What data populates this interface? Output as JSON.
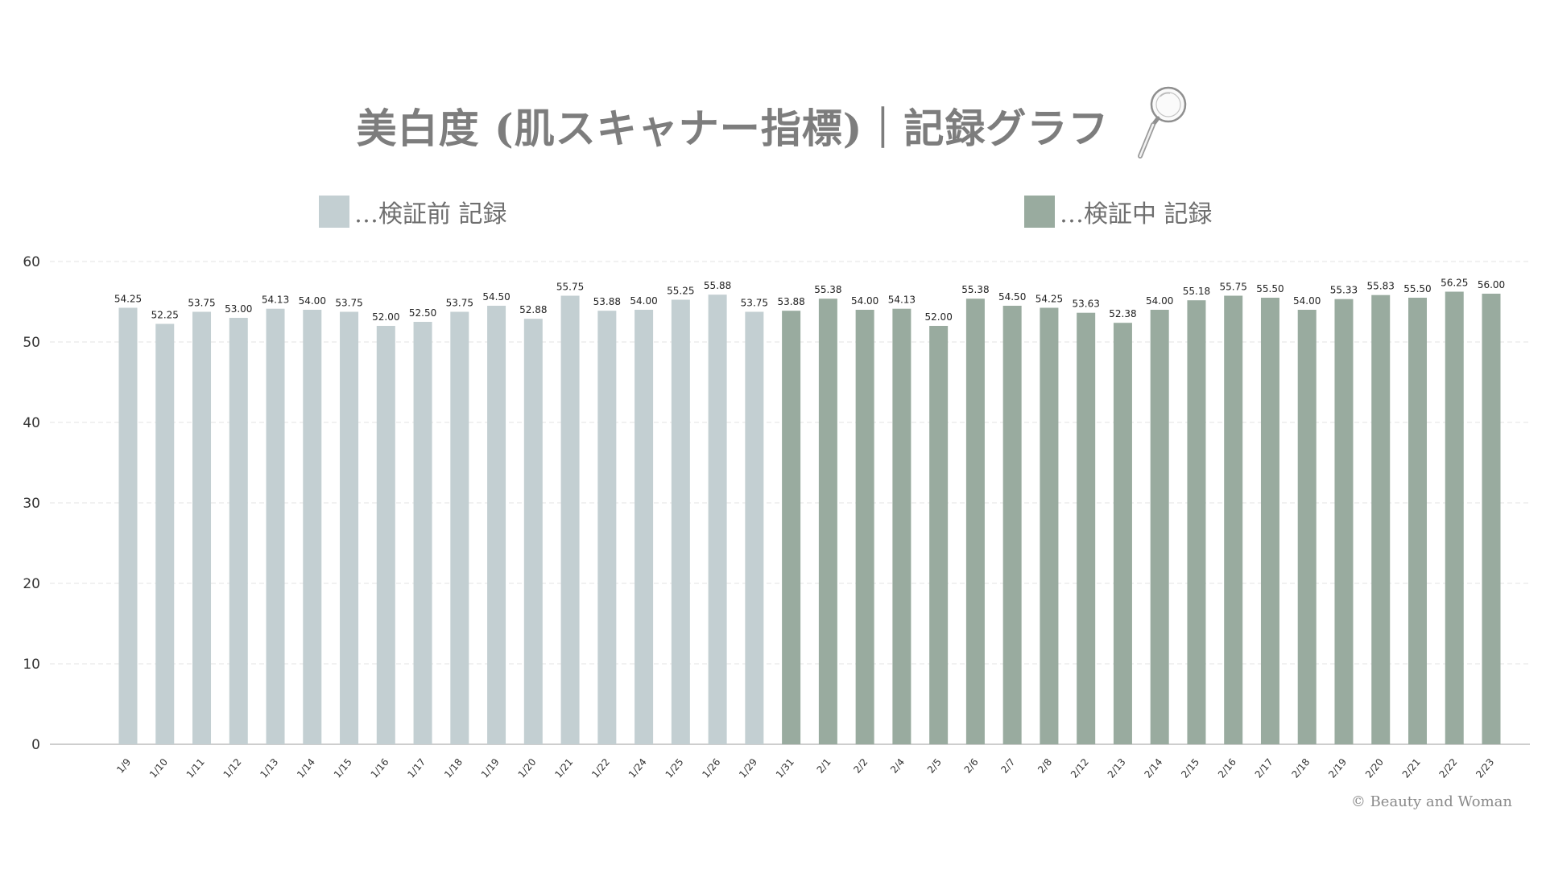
{
  "title": "美白度 (肌スキャナー指標)｜記録グラフ",
  "icons": {
    "title_icon": "magnifying-glass-icon"
  },
  "legend": [
    {
      "label": "…検証前 記録",
      "color": "#c3cfd2"
    },
    {
      "label": "…検証中 記録",
      "color": "#99ab9f"
    }
  ],
  "copyright": "© Beauty and Woman",
  "colors": {
    "before": "#c3cfd2",
    "during": "#99ab9f",
    "axis": "#333333",
    "grid": "#e3e3e3"
  },
  "chart_data": {
    "type": "bar",
    "title": "美白度 (肌スキャナー指標)｜記録グラフ",
    "xlabel": "",
    "ylabel": "",
    "ylim": [
      0,
      60
    ],
    "yticks": [
      0,
      10,
      20,
      30,
      40,
      50,
      60
    ],
    "grid": true,
    "legend_position": "top",
    "categories": [
      "1/9",
      "1/10",
      "1/11",
      "1/12",
      "1/13",
      "1/14",
      "1/15",
      "1/16",
      "1/17",
      "1/18",
      "1/19",
      "1/20",
      "1/21",
      "1/22",
      "1/24",
      "1/25",
      "1/26",
      "1/29",
      "1/31",
      "2/1",
      "2/2",
      "2/4",
      "2/5",
      "2/6",
      "2/7",
      "2/8",
      "2/12",
      "2/13",
      "2/14",
      "2/15",
      "2/16",
      "2/17",
      "2/18",
      "2/19",
      "2/20",
      "2/21",
      "2/22",
      "2/23"
    ],
    "series": [
      {
        "name": "…検証前 記録",
        "values": [
          54.25,
          52.25,
          53.75,
          53.0,
          54.13,
          54.0,
          53.75,
          52.0,
          52.5,
          53.75,
          54.5,
          52.88,
          55.75,
          53.88,
          54.0,
          55.25,
          55.88,
          53.75,
          null,
          null,
          null,
          null,
          null,
          null,
          null,
          null,
          null,
          null,
          null,
          null,
          null,
          null,
          null,
          null,
          null,
          null,
          null,
          null
        ]
      },
      {
        "name": "…検証中 記録",
        "values": [
          null,
          null,
          null,
          null,
          null,
          null,
          null,
          null,
          null,
          null,
          null,
          null,
          null,
          null,
          null,
          null,
          null,
          null,
          53.88,
          55.38,
          54.0,
          54.13,
          52.0,
          55.38,
          54.5,
          54.25,
          53.63,
          52.38,
          54.0,
          55.18,
          55.75,
          55.5,
          54.0,
          55.33,
          55.83,
          55.5,
          56.25,
          56.0
        ]
      }
    ],
    "data_labels": [
      "54.25",
      "52.25",
      "53.75",
      "53.00",
      "54.13",
      "54.00",
      "53.75",
      "52.00",
      "52.50",
      "53.75",
      "54.50",
      "52.88",
      "55.75",
      "53.88",
      "54.00",
      "55.25",
      "55.88",
      "53.75",
      "53.88",
      "55.38",
      "54.00",
      "54.13",
      "52.00",
      "55.38",
      "54.50",
      "54.25",
      "53.63",
      "52.38",
      "54.00",
      "55.18",
      "55.75",
      "55.50",
      "54.00",
      "55.33",
      "55.83",
      "55.50",
      "56.25",
      "56.00"
    ]
  }
}
